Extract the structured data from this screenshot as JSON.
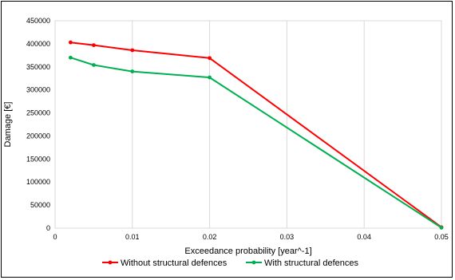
{
  "chart_data": {
    "type": "line",
    "title": "",
    "xlabel": "Exceedance probability [year^-1]",
    "ylabel": "Damage [€]",
    "xlim": [
      0,
      0.05
    ],
    "ylim": [
      0,
      450000
    ],
    "x_ticks": [
      0,
      0.01,
      0.02,
      0.03,
      0.04,
      0.05
    ],
    "x_tick_labels": [
      "0",
      "0.01",
      "0.02",
      "0.03",
      "0.04",
      "0.05"
    ],
    "y_ticks": [
      0,
      50000,
      100000,
      150000,
      200000,
      250000,
      300000,
      350000,
      400000,
      450000
    ],
    "y_tick_labels": [
      "0",
      "50000",
      "100000",
      "150000",
      "200000",
      "250000",
      "300000",
      "350000",
      "400000",
      "450000"
    ],
    "grid": "vertical",
    "legend_position": "bottom",
    "series": [
      {
        "name": "Without structural defences",
        "color": "#ff0000",
        "x": [
          0.002,
          0.005,
          0.01,
          0.02,
          0.05
        ],
        "y": [
          403000,
          397000,
          386000,
          369000,
          2000
        ]
      },
      {
        "name": "With structural defences",
        "color": "#00b050",
        "x": [
          0.002,
          0.005,
          0.01,
          0.02,
          0.05
        ],
        "y": [
          370000,
          354000,
          340000,
          327000,
          1000
        ]
      }
    ]
  }
}
